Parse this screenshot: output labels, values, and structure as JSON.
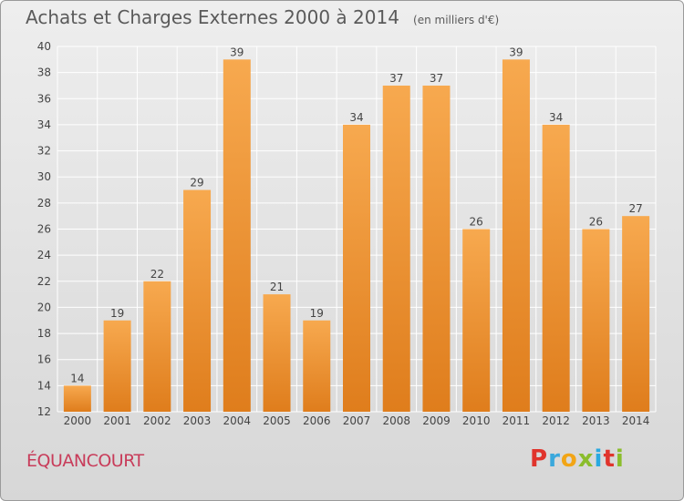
{
  "title": "Achats et Charges Externes 2000 à 2014",
  "subtitle": "(en milliers d'€)",
  "commune": "ÉQUANCOURT",
  "brand": {
    "letters": [
      "P",
      "r",
      "o",
      "x",
      "i",
      "t",
      "i"
    ],
    "colors": [
      "#e0342c",
      "#3aa8dc",
      "#f2a516",
      "#8bbd2c",
      "#2aa9e0",
      "#e0342c",
      "#8bbd2c"
    ]
  },
  "colors": {
    "bar_light": "#f7a94f",
    "bar_dark": "#df7d1c",
    "grid": "#ffffff",
    "axis_text": "#444444"
  },
  "chart_data": {
    "type": "bar",
    "categories": [
      "2000",
      "2001",
      "2002",
      "2003",
      "2004",
      "2005",
      "2006",
      "2007",
      "2008",
      "2009",
      "2010",
      "2011",
      "2012",
      "2013",
      "2014"
    ],
    "values": [
      14,
      19,
      22,
      29,
      39,
      21,
      19,
      34,
      37,
      37,
      26,
      39,
      34,
      26,
      27
    ],
    "title": "Achats et Charges Externes 2000 à 2014",
    "subtitle": "(en milliers d'€)",
    "ylim": [
      12,
      40
    ],
    "yticks": [
      12,
      14,
      16,
      18,
      20,
      22,
      24,
      26,
      28,
      30,
      32,
      34,
      36,
      38,
      40
    ],
    "grid": true,
    "legend": "none"
  }
}
